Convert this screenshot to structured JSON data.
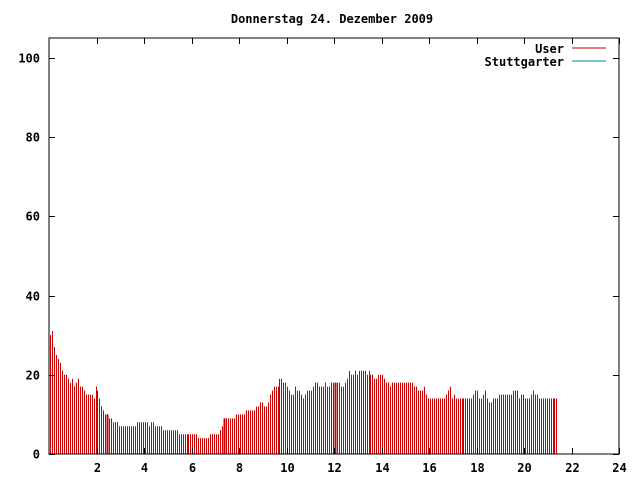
{
  "chart_data": {
    "type": "bar",
    "title": "Donnerstag 24. Dezember 2009",
    "xlabel": "",
    "ylabel": "",
    "xlim": [
      0,
      24
    ],
    "ylim": [
      0,
      105
    ],
    "x_ticks": [
      2,
      4,
      6,
      8,
      10,
      12,
      14,
      16,
      18,
      20,
      22,
      24
    ],
    "y_ticks": [
      0,
      20,
      40,
      60,
      80,
      100
    ],
    "grid": false,
    "legend_position": "top-right",
    "legend": [
      {
        "label": "User",
        "color": "#cc0000"
      },
      {
        "label": "Stuttgarter",
        "color": "#008b8b"
      }
    ],
    "series": [
      {
        "name": "User",
        "color": "#cc0000",
        "x_start": 0,
        "x_step": 0.0833,
        "values": [
          30,
          31,
          27,
          25,
          24,
          23,
          21,
          20,
          20,
          19,
          18,
          19,
          17,
          18,
          19,
          17,
          17,
          16,
          15,
          15,
          15,
          15,
          14,
          17,
          16,
          14,
          12,
          11,
          10,
          10,
          9,
          9,
          8,
          8,
          8,
          7,
          7,
          7,
          7,
          7,
          7,
          7,
          7,
          7,
          8,
          8,
          8,
          8,
          8,
          8,
          7,
          8,
          8,
          7,
          7,
          7,
          7,
          6,
          6,
          6,
          6,
          6,
          6,
          6,
          6,
          5,
          5,
          5,
          5,
          5,
          5,
          5,
          5,
          5,
          5,
          4,
          4,
          4,
          4,
          4,
          4,
          5,
          5,
          5,
          5,
          5,
          6,
          7,
          9,
          9,
          9,
          9,
          9,
          9,
          10,
          10,
          10,
          10,
          10,
          11,
          11,
          11,
          11,
          11,
          12,
          12,
          13,
          13,
          12,
          12,
          13,
          15,
          16,
          17,
          17,
          17,
          19,
          19,
          18,
          18,
          17,
          16,
          15,
          15,
          17,
          16,
          16,
          15,
          14,
          15,
          16,
          16,
          16,
          17,
          18,
          18,
          17,
          17,
          17,
          18,
          17,
          17,
          18,
          18,
          18,
          18,
          18,
          17,
          17,
          18,
          19,
          21,
          20,
          20,
          21,
          20,
          21,
          21,
          21,
          21,
          20,
          21,
          20,
          20,
          19,
          19,
          20,
          20,
          20,
          19,
          18,
          18,
          17,
          18,
          18,
          18,
          18,
          18,
          18,
          18,
          18,
          18,
          18,
          18,
          17,
          17,
          16,
          16,
          16,
          17,
          15,
          14,
          14,
          14,
          14,
          14,
          14,
          14,
          14,
          14,
          15,
          16,
          17,
          14,
          15,
          14,
          14,
          14,
          14,
          14,
          14,
          14,
          14,
          14,
          15,
          16,
          16,
          14,
          14,
          15,
          16,
          14,
          13,
          13,
          14,
          14,
          14,
          15,
          15,
          15,
          15,
          15,
          15,
          15,
          16,
          16,
          16,
          14,
          15,
          15,
          14,
          14,
          14,
          15,
          16,
          15,
          15,
          14,
          14,
          14,
          14,
          14,
          14,
          14,
          14,
          14,
          14
        ]
      },
      {
        "name": "Stuttgarter",
        "color": "#008b8b",
        "values": []
      }
    ]
  }
}
